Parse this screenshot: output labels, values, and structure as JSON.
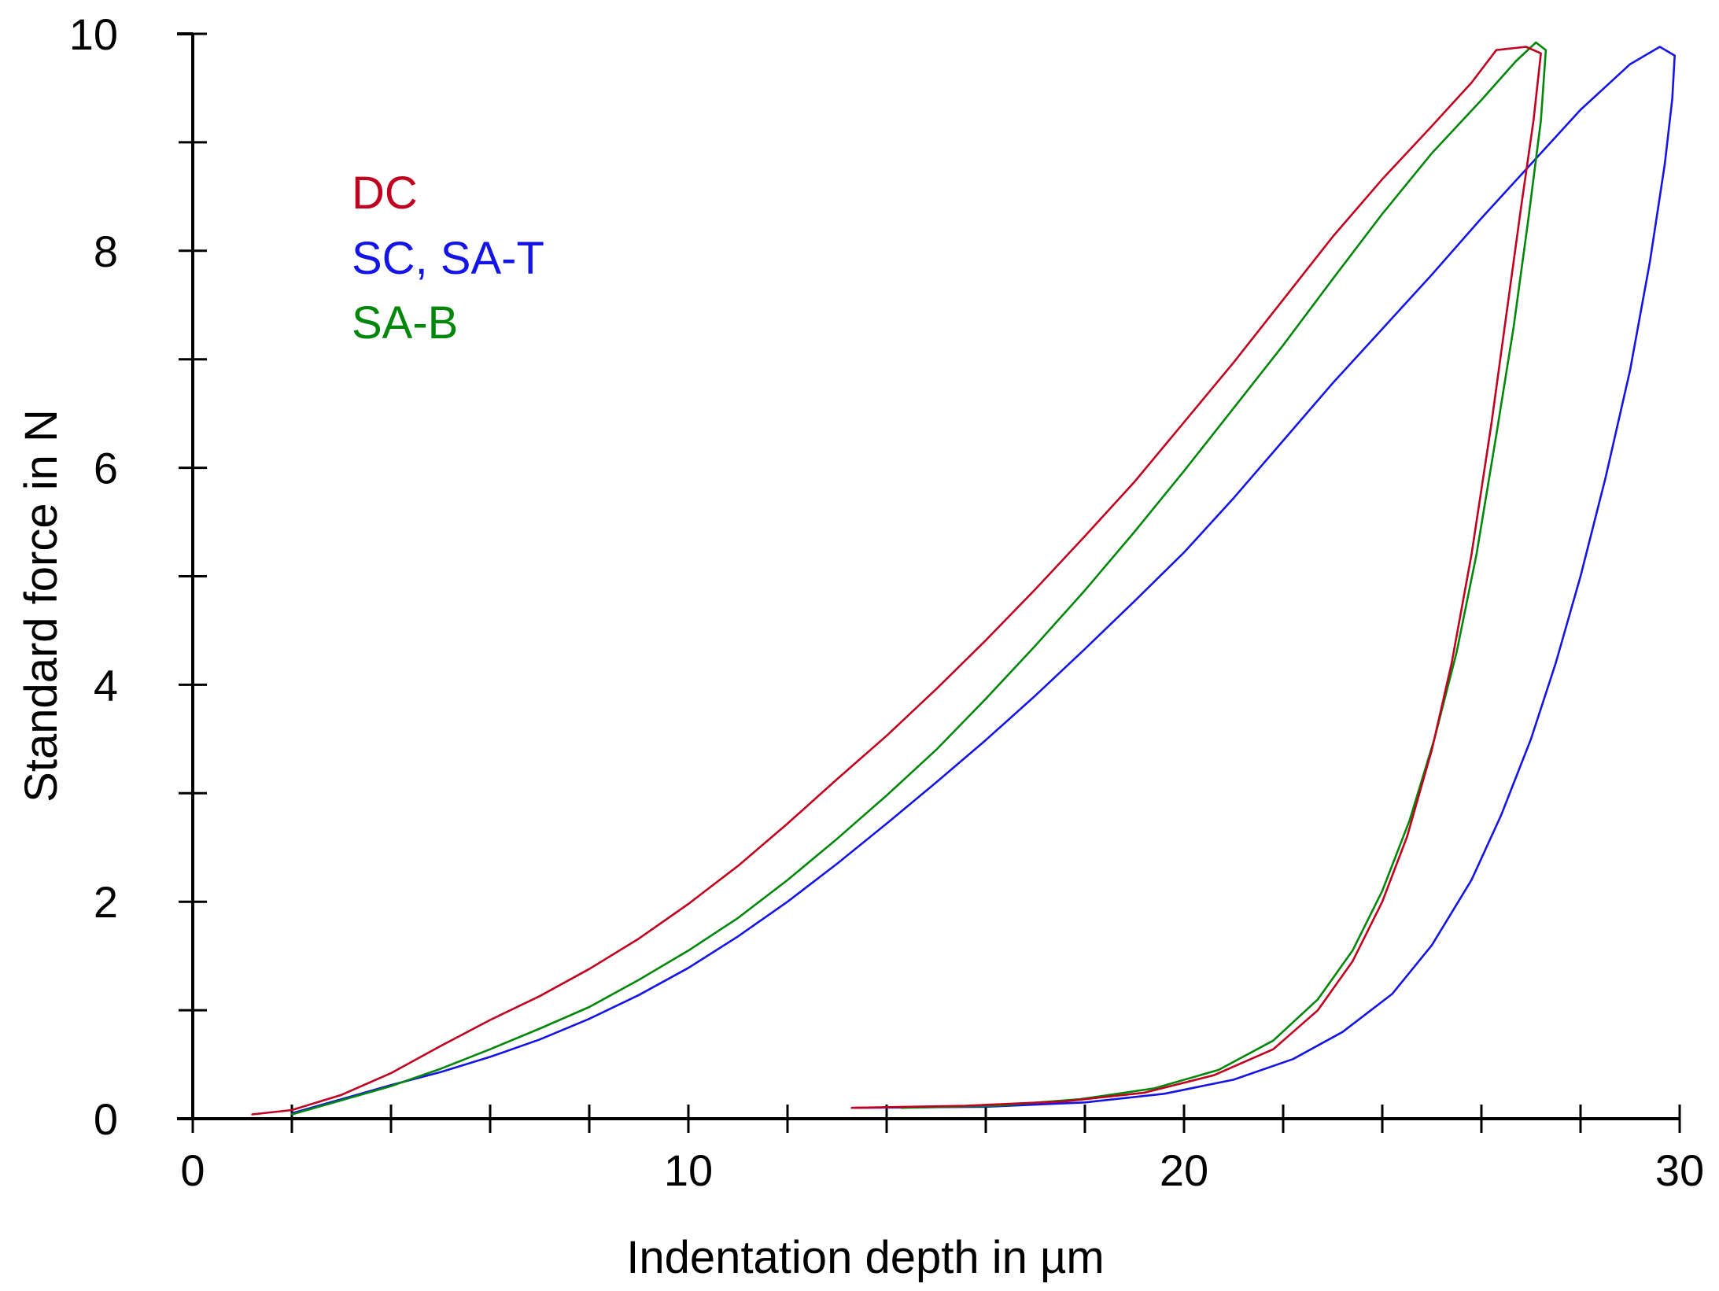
{
  "chart_data": {
    "type": "line",
    "title": "",
    "xlabel": "Indentation depth in µm",
    "ylabel": "Standard force in N",
    "xlim": [
      0,
      30
    ],
    "ylim": [
      0,
      10
    ],
    "x_major_ticks": [
      0,
      10,
      20,
      30
    ],
    "x_minor_step": 2,
    "y_major_ticks": [
      0,
      2,
      4,
      6,
      8,
      10
    ],
    "y_minor_step": 1,
    "grid": false,
    "legend_position": "top-left",
    "legend": [
      {
        "label": "DC",
        "color": "#c0001f"
      },
      {
        "label": "SC, SA-T",
        "color": "#1414e6"
      },
      {
        "label": "SA-B",
        "color": "#00870a"
      }
    ],
    "series": [
      {
        "name": "DC",
        "color": "#c0001f",
        "loading": [
          [
            1.2,
            0.04
          ],
          [
            2,
            0.08
          ],
          [
            3,
            0.22
          ],
          [
            4,
            0.42
          ],
          [
            5,
            0.67
          ],
          [
            6,
            0.91
          ],
          [
            7,
            1.13
          ],
          [
            8,
            1.38
          ],
          [
            9,
            1.66
          ],
          [
            10,
            1.98
          ],
          [
            11,
            2.33
          ],
          [
            12,
            2.72
          ],
          [
            13,
            3.13
          ],
          [
            14,
            3.53
          ],
          [
            15,
            3.96
          ],
          [
            16,
            4.41
          ],
          [
            17,
            4.88
          ],
          [
            18,
            5.37
          ],
          [
            19,
            5.87
          ],
          [
            20,
            6.42
          ],
          [
            21,
            6.97
          ],
          [
            22,
            7.55
          ],
          [
            23,
            8.13
          ],
          [
            24,
            8.66
          ],
          [
            25,
            9.15
          ],
          [
            25.8,
            9.55
          ],
          [
            26.3,
            9.85
          ],
          [
            26.9,
            9.88
          ],
          [
            27.2,
            9.82
          ]
        ],
        "unloading": [
          [
            27.2,
            9.82
          ],
          [
            27.05,
            9.2
          ],
          [
            26.8,
            8.4
          ],
          [
            26.5,
            7.4
          ],
          [
            26.2,
            6.4
          ],
          [
            25.8,
            5.2
          ],
          [
            25.4,
            4.2
          ],
          [
            25,
            3.4
          ],
          [
            24.5,
            2.6
          ],
          [
            24,
            2.0
          ],
          [
            23.4,
            1.45
          ],
          [
            22.7,
            1.0
          ],
          [
            21.8,
            0.64
          ],
          [
            20.6,
            0.4
          ],
          [
            19.2,
            0.24
          ],
          [
            17.6,
            0.16
          ],
          [
            15.6,
            0.12
          ],
          [
            13.3,
            0.1
          ]
        ]
      },
      {
        "name": "SC, SA-T",
        "color": "#1414e6",
        "loading": [
          [
            2,
            0.05
          ],
          [
            3,
            0.18
          ],
          [
            4,
            0.31
          ],
          [
            5,
            0.43
          ],
          [
            6,
            0.57
          ],
          [
            7,
            0.73
          ],
          [
            8,
            0.92
          ],
          [
            9,
            1.14
          ],
          [
            10,
            1.39
          ],
          [
            11,
            1.68
          ],
          [
            12,
            2.0
          ],
          [
            13,
            2.35
          ],
          [
            14,
            2.72
          ],
          [
            15,
            3.1
          ],
          [
            16,
            3.49
          ],
          [
            17,
            3.9
          ],
          [
            18,
            4.33
          ],
          [
            19,
            4.77
          ],
          [
            20,
            5.22
          ],
          [
            21,
            5.72
          ],
          [
            22,
            6.25
          ],
          [
            23,
            6.78
          ],
          [
            24,
            7.28
          ],
          [
            25,
            7.78
          ],
          [
            26,
            8.3
          ],
          [
            27,
            8.8
          ],
          [
            28,
            9.3
          ],
          [
            29,
            9.72
          ],
          [
            29.6,
            9.88
          ],
          [
            29.9,
            9.8
          ]
        ],
        "unloading": [
          [
            29.9,
            9.8
          ],
          [
            29.85,
            9.4
          ],
          [
            29.7,
            8.8
          ],
          [
            29.4,
            7.9
          ],
          [
            29,
            6.9
          ],
          [
            28.5,
            5.9
          ],
          [
            28,
            5.0
          ],
          [
            27.5,
            4.2
          ],
          [
            27,
            3.5
          ],
          [
            26.4,
            2.8
          ],
          [
            25.8,
            2.2
          ],
          [
            25,
            1.6
          ],
          [
            24.2,
            1.15
          ],
          [
            23.2,
            0.8
          ],
          [
            22.2,
            0.55
          ],
          [
            21,
            0.36
          ],
          [
            19.6,
            0.23
          ],
          [
            18,
            0.15
          ],
          [
            16,
            0.11
          ],
          [
            13.3,
            0.1
          ]
        ]
      },
      {
        "name": "SA-B",
        "color": "#00870a",
        "loading": [
          [
            2,
            0.04
          ],
          [
            3,
            0.17
          ],
          [
            4,
            0.3
          ],
          [
            5,
            0.46
          ],
          [
            6,
            0.64
          ],
          [
            7,
            0.83
          ],
          [
            8,
            1.03
          ],
          [
            9,
            1.28
          ],
          [
            10,
            1.55
          ],
          [
            11,
            1.85
          ],
          [
            12,
            2.2
          ],
          [
            13,
            2.58
          ],
          [
            14,
            2.98
          ],
          [
            15,
            3.4
          ],
          [
            16,
            3.87
          ],
          [
            17,
            4.36
          ],
          [
            18,
            4.87
          ],
          [
            19,
            5.41
          ],
          [
            20,
            5.97
          ],
          [
            21,
            6.55
          ],
          [
            22,
            7.13
          ],
          [
            23,
            7.74
          ],
          [
            24,
            8.34
          ],
          [
            25,
            8.9
          ],
          [
            26,
            9.39
          ],
          [
            26.7,
            9.75
          ],
          [
            27.1,
            9.92
          ],
          [
            27.3,
            9.85
          ]
        ],
        "unloading": [
          [
            27.3,
            9.85
          ],
          [
            27.2,
            9.2
          ],
          [
            26.95,
            8.3
          ],
          [
            26.65,
            7.3
          ],
          [
            26.3,
            6.3
          ],
          [
            25.9,
            5.2
          ],
          [
            25.5,
            4.3
          ],
          [
            25.05,
            3.5
          ],
          [
            24.55,
            2.75
          ],
          [
            24,
            2.1
          ],
          [
            23.4,
            1.55
          ],
          [
            22.7,
            1.1
          ],
          [
            21.8,
            0.72
          ],
          [
            20.7,
            0.45
          ],
          [
            19.4,
            0.28
          ],
          [
            17.9,
            0.18
          ],
          [
            16.2,
            0.12
          ],
          [
            14.3,
            0.1
          ]
        ]
      }
    ]
  }
}
